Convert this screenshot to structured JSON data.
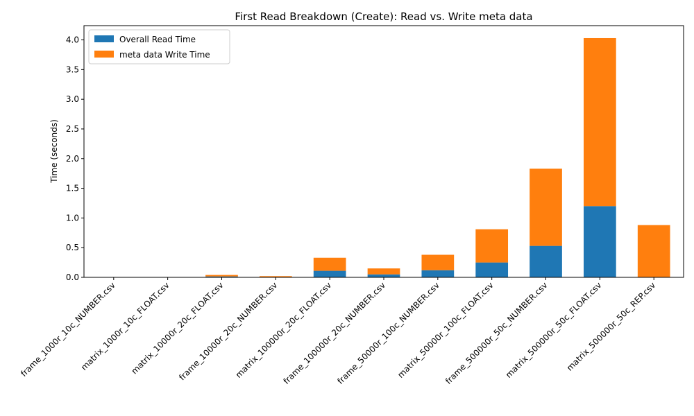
{
  "chart_data": {
    "type": "bar",
    "stacked": true,
    "title": "First Read Breakdown (Create): Read vs. Write meta data",
    "xlabel": "",
    "ylabel": "Time (seconds)",
    "ylim": [
      0,
      4.24
    ],
    "yticks": [
      "0.0",
      "0.5",
      "1.0",
      "1.5",
      "2.0",
      "2.5",
      "3.0",
      "3.5",
      "4.0"
    ],
    "legend_position": "top-left",
    "categories": [
      "frame_1000r_10c_NUMBER.csv",
      "matrix_1000r_10c_FLOAT.csv",
      "matrix_10000r_20c_FLOAT.csv",
      "frame_10000r_20c_NUMBER.csv",
      "matrix_100000r_20c_FLOAT.csv",
      "frame_100000r_20c_NUMBER.csv",
      "frame_50000r_100c_NUMBER.csv",
      "matrix_50000r_100c_FLOAT.csv",
      "frame_500000r_50c_NUMBER.csv",
      "matrix_500000r_50c_FLOAT.csv",
      "matrix_500000r_50c_REP.csv"
    ],
    "series": [
      {
        "name": "Overall Read Time",
        "color": "#1f77b4",
        "values": [
          0.002,
          0.002,
          0.015,
          0.005,
          0.11,
          0.05,
          0.12,
          0.25,
          0.53,
          1.2,
          0.0
        ]
      },
      {
        "name": "meta data Write Time",
        "color": "#ff7f0e",
        "values": [
          0.003,
          0.003,
          0.025,
          0.015,
          0.22,
          0.1,
          0.26,
          0.56,
          1.3,
          2.83,
          0.88
        ]
      }
    ]
  }
}
